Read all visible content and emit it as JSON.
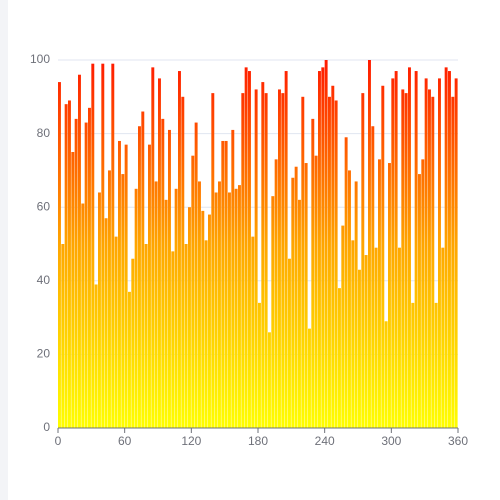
{
  "chart_data": {
    "type": "bar",
    "x": [
      0,
      3,
      6,
      9,
      12,
      15,
      18,
      21,
      24,
      27,
      30,
      33,
      36,
      39,
      42,
      45,
      48,
      51,
      54,
      57,
      60,
      63,
      66,
      69,
      72,
      75,
      78,
      81,
      84,
      87,
      90,
      93,
      96,
      99,
      102,
      105,
      108,
      111,
      114,
      117,
      120,
      123,
      126,
      129,
      132,
      135,
      138,
      141,
      144,
      147,
      150,
      153,
      156,
      159,
      162,
      165,
      168,
      171,
      174,
      177,
      180,
      183,
      186,
      189,
      192,
      195,
      198,
      201,
      204,
      207,
      210,
      213,
      216,
      219,
      222,
      225,
      228,
      231,
      234,
      237,
      240,
      243,
      246,
      249,
      252,
      255,
      258,
      261,
      264,
      267,
      270,
      273,
      276,
      279,
      282,
      285,
      288,
      291,
      294,
      297,
      300,
      303,
      306,
      309,
      312,
      315,
      318,
      321,
      324,
      327,
      330,
      333,
      336,
      339,
      342,
      345,
      348,
      351,
      354,
      357
    ],
    "values": [
      94,
      50,
      88,
      89,
      75,
      84,
      96,
      61,
      83,
      87,
      99,
      39,
      64,
      99,
      57,
      70,
      99,
      52,
      78,
      69,
      77,
      37,
      46,
      65,
      82,
      86,
      50,
      77,
      98,
      67,
      95,
      84,
      62,
      81,
      48,
      65,
      97,
      90,
      50,
      60,
      74,
      83,
      67,
      59,
      51,
      58,
      91,
      64,
      67,
      78,
      78,
      64,
      81,
      65,
      66,
      91,
      98,
      97,
      52,
      92,
      34,
      94,
      91,
      26,
      63,
      73,
      92,
      91,
      97,
      46,
      68,
      71,
      62,
      90,
      72,
      27,
      84,
      74,
      97,
      98,
      100,
      90,
      93,
      89,
      38,
      55,
      79,
      70,
      51,
      67,
      43,
      91,
      47,
      100,
      82,
      49,
      73,
      93,
      29,
      72,
      95,
      97,
      49,
      92,
      91,
      98,
      34,
      97,
      69,
      73,
      95,
      92,
      90,
      34,
      95,
      49,
      98,
      97,
      90,
      95
    ],
    "gradient": [
      "#ffff00",
      "#ffa500",
      "#ff1a00"
    ],
    "xlim": [
      0,
      360
    ],
    "xticks": [
      0,
      60,
      120,
      180,
      240,
      300,
      360
    ],
    "ylim": [
      0,
      100
    ],
    "yticks": [
      0,
      20,
      40,
      60,
      80,
      100
    ],
    "grid": true
  }
}
